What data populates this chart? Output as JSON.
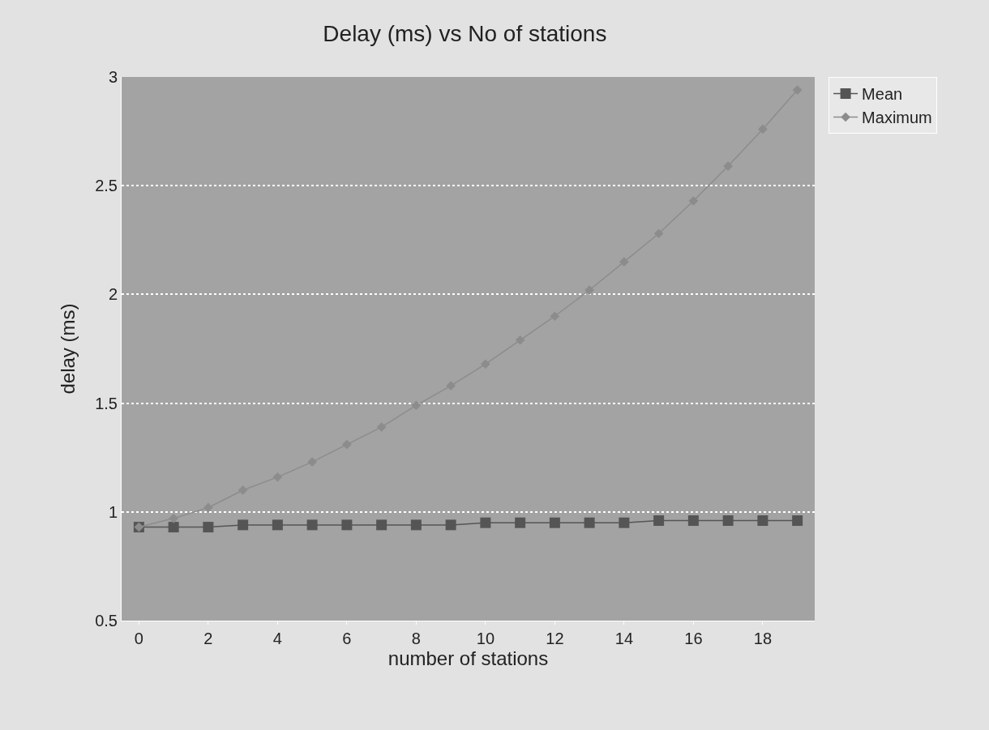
{
  "chart_data": {
    "type": "line",
    "title": "Delay (ms) vs No of stations",
    "xlabel": "number of stations",
    "ylabel": "delay (ms)",
    "x": [
      0,
      1,
      2,
      3,
      4,
      5,
      6,
      7,
      8,
      9,
      10,
      11,
      12,
      13,
      14,
      15,
      16,
      17,
      18,
      19
    ],
    "series": [
      {
        "name": "Mean",
        "color": "#555555",
        "marker": "square",
        "values": [
          0.93,
          0.93,
          0.93,
          0.94,
          0.94,
          0.94,
          0.94,
          0.94,
          0.94,
          0.94,
          0.95,
          0.95,
          0.95,
          0.95,
          0.95,
          0.96,
          0.96,
          0.96,
          0.96,
          0.96
        ]
      },
      {
        "name": "Maximum",
        "color": "#8c8c8c",
        "marker": "diamond",
        "values": [
          0.93,
          0.97,
          1.02,
          1.1,
          1.16,
          1.23,
          1.31,
          1.39,
          1.49,
          1.58,
          1.68,
          1.79,
          1.9,
          2.02,
          2.15,
          2.28,
          2.43,
          2.59,
          2.76,
          2.94
        ]
      }
    ],
    "xlim": [
      -0.5,
      19.5
    ],
    "xticks": [
      0,
      2,
      4,
      6,
      8,
      10,
      12,
      14,
      16,
      18
    ],
    "ylim": [
      0.5,
      3
    ],
    "yticks": [
      0.5,
      1,
      1.5,
      2,
      2.5,
      3
    ],
    "grid": "y",
    "legend": "top right",
    "line_style": "solid"
  }
}
